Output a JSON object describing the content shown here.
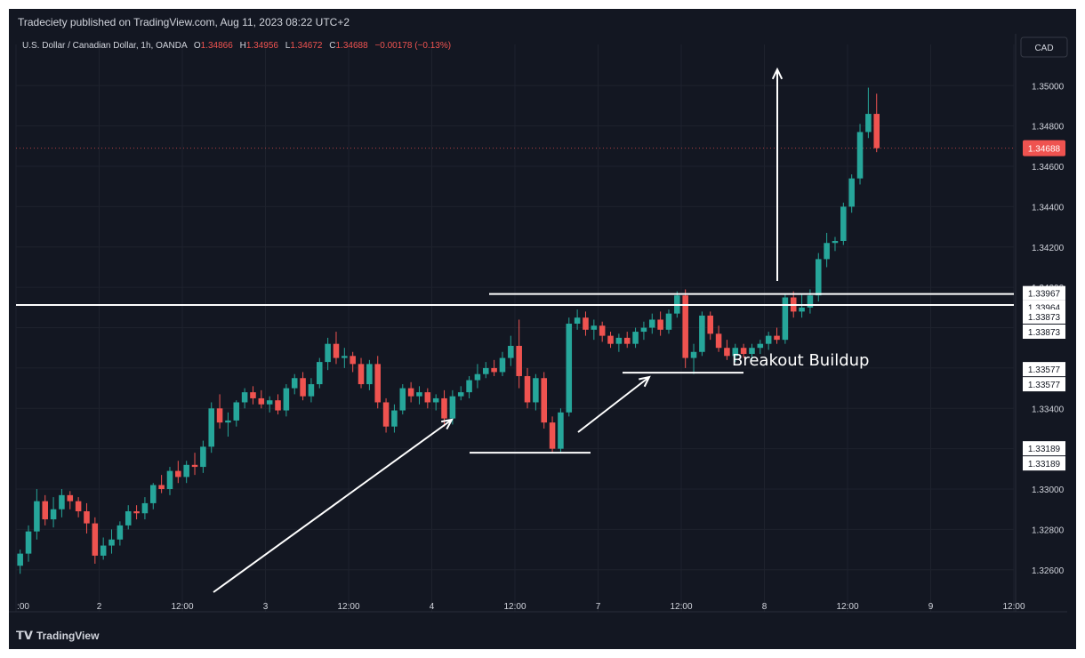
{
  "publisher_line": "Tradeciety published on TradingView.com, Aug 11, 2023 08:22 UTC+2",
  "footer_brand": "TradingView",
  "legend": {
    "symbol": "U.S. Dollar / Canadian Dollar, 1h, OANDA",
    "o_label": "O",
    "o_value": "1.34866",
    "h_label": "H",
    "h_value": "1.34956",
    "l_label": "L",
    "l_value": "1.34672",
    "c_label": "C",
    "c_value": "1.34688",
    "change": "−0.00178 (−0.13%)"
  },
  "currency_label": "CAD",
  "current_price_label": "1.34688",
  "level_labels": [
    "1.33967",
    "1.33964",
    "1.33873",
    "1.33873",
    "1.33577",
    "1.33577",
    "1.33189",
    "1.33189"
  ],
  "annotation_text": "Breakout Buildup",
  "colors": {
    "bg": "#131722",
    "up": "#26a69a",
    "down": "#ef5350",
    "text": "#d1d4dc",
    "grid": "#1e222d",
    "annotation": "#ffffff"
  },
  "chart_data": {
    "type": "candlestick",
    "y_ticks": [
      1.326,
      1.328,
      1.33,
      1.332,
      1.334,
      1.336,
      1.338,
      1.34,
      1.342,
      1.344,
      1.346,
      1.348,
      1.35
    ],
    "y_tick_labels": [
      "1.32600",
      "1.32800",
      "1.33000",
      "",
      "1.33400",
      "",
      "",
      "1.34000",
      "1.34200",
      "1.34400",
      "1.34600",
      "1.34800",
      "1.35000"
    ],
    "ylim": [
      1.3248,
      1.3516
    ],
    "x_labels": [
      ":00",
      "2",
      "12:00",
      "3",
      "12:00",
      "4",
      "12:00",
      "7",
      "12:00",
      "8",
      "12:00",
      "9",
      "12:00"
    ],
    "x_label_bars": [
      0,
      10,
      20,
      30,
      40,
      50,
      60,
      70,
      80,
      90,
      100,
      110,
      120
    ],
    "bars": [
      [
        1.3262,
        1.327,
        1.3258,
        1.3268
      ],
      [
        1.3268,
        1.3282,
        1.3264,
        1.3279
      ],
      [
        1.3279,
        1.33,
        1.3275,
        1.3294
      ],
      [
        1.3294,
        1.3297,
        1.3282,
        1.3285
      ],
      [
        1.3285,
        1.3296,
        1.3281,
        1.329
      ],
      [
        1.329,
        1.33,
        1.3286,
        1.3297
      ],
      [
        1.3297,
        1.3299,
        1.329,
        1.3294
      ],
      [
        1.3294,
        1.3296,
        1.3286,
        1.3289
      ],
      [
        1.3289,
        1.3293,
        1.3278,
        1.3283
      ],
      [
        1.3283,
        1.3286,
        1.3263,
        1.3267
      ],
      [
        1.3267,
        1.3276,
        1.3265,
        1.3272
      ],
      [
        1.3272,
        1.328,
        1.3268,
        1.3275
      ],
      [
        1.3275,
        1.3284,
        1.3272,
        1.3282
      ],
      [
        1.3282,
        1.3292,
        1.328,
        1.3289
      ],
      [
        1.3289,
        1.3292,
        1.3285,
        1.3288
      ],
      [
        1.3288,
        1.3296,
        1.3285,
        1.3293
      ],
      [
        1.3293,
        1.3303,
        1.329,
        1.3302
      ],
      [
        1.3302,
        1.3307,
        1.3298,
        1.33
      ],
      [
        1.33,
        1.3311,
        1.3297,
        1.3309
      ],
      [
        1.3309,
        1.3314,
        1.3303,
        1.3306
      ],
      [
        1.3306,
        1.3314,
        1.3303,
        1.3312
      ],
      [
        1.3312,
        1.3318,
        1.3307,
        1.3311
      ],
      [
        1.3311,
        1.3324,
        1.3308,
        1.3321
      ],
      [
        1.3321,
        1.3343,
        1.3318,
        1.334
      ],
      [
        1.334,
        1.3347,
        1.333,
        1.3333
      ],
      [
        1.3333,
        1.3338,
        1.3326,
        1.3334
      ],
      [
        1.3334,
        1.3344,
        1.3331,
        1.3343
      ],
      [
        1.3343,
        1.335,
        1.334,
        1.3348
      ],
      [
        1.3348,
        1.3351,
        1.3342,
        1.3345
      ],
      [
        1.3345,
        1.3349,
        1.334,
        1.3342
      ],
      [
        1.3342,
        1.3346,
        1.3338,
        1.3344
      ],
      [
        1.3344,
        1.3347,
        1.3337,
        1.3339
      ],
      [
        1.3339,
        1.3352,
        1.3336,
        1.335
      ],
      [
        1.335,
        1.3357,
        1.3347,
        1.3355
      ],
      [
        1.3355,
        1.3358,
        1.3344,
        1.3346
      ],
      [
        1.3346,
        1.3355,
        1.3343,
        1.3352
      ],
      [
        1.3352,
        1.3365,
        1.335,
        1.3363
      ],
      [
        1.3363,
        1.3375,
        1.3359,
        1.3372
      ],
      [
        1.3372,
        1.3378,
        1.3362,
        1.3365
      ],
      [
        1.3365,
        1.337,
        1.336,
        1.3366
      ],
      [
        1.3366,
        1.3368,
        1.3358,
        1.3362
      ],
      [
        1.3362,
        1.3365,
        1.335,
        1.3352
      ],
      [
        1.3352,
        1.3364,
        1.3349,
        1.3362
      ],
      [
        1.3362,
        1.3366,
        1.334,
        1.3343
      ],
      [
        1.3343,
        1.3345,
        1.3328,
        1.3331
      ],
      [
        1.3331,
        1.3342,
        1.3328,
        1.3339
      ],
      [
        1.3339,
        1.3352,
        1.3337,
        1.335
      ],
      [
        1.335,
        1.3353,
        1.3343,
        1.3346
      ],
      [
        1.3346,
        1.3351,
        1.3342,
        1.3348
      ],
      [
        1.3348,
        1.335,
        1.334,
        1.3343
      ],
      [
        1.3343,
        1.3347,
        1.3339,
        1.3345
      ],
      [
        1.3345,
        1.3349,
        1.3331,
        1.3335
      ],
      [
        1.3335,
        1.3349,
        1.3332,
        1.3346
      ],
      [
        1.3346,
        1.3351,
        1.3344,
        1.3348
      ],
      [
        1.3348,
        1.3356,
        1.3345,
        1.3354
      ],
      [
        1.3354,
        1.3362,
        1.335,
        1.3357
      ],
      [
        1.3357,
        1.3363,
        1.3355,
        1.336
      ],
      [
        1.336,
        1.3364,
        1.3356,
        1.3358
      ],
      [
        1.3358,
        1.3368,
        1.3356,
        1.3365
      ],
      [
        1.3365,
        1.3376,
        1.3361,
        1.3371
      ],
      [
        1.3371,
        1.3384,
        1.335,
        1.3356
      ],
      [
        1.3356,
        1.336,
        1.334,
        1.3343
      ],
      [
        1.3343,
        1.3357,
        1.3339,
        1.3355
      ],
      [
        1.3355,
        1.3358,
        1.333,
        1.3333
      ],
      [
        1.3333,
        1.3336,
        1.3318,
        1.332
      ],
      [
        1.332,
        1.334,
        1.3318,
        1.3338
      ],
      [
        1.3338,
        1.3385,
        1.3336,
        1.3382
      ],
      [
        1.3382,
        1.3389,
        1.3379,
        1.3385
      ],
      [
        1.3385,
        1.3388,
        1.3376,
        1.3379
      ],
      [
        1.3379,
        1.3384,
        1.3374,
        1.3381
      ],
      [
        1.3381,
        1.3383,
        1.3373,
        1.3376
      ],
      [
        1.3376,
        1.3378,
        1.337,
        1.3372
      ],
      [
        1.3372,
        1.3377,
        1.3368,
        1.3375
      ],
      [
        1.3375,
        1.3378,
        1.337,
        1.3372
      ],
      [
        1.3372,
        1.338,
        1.337,
        1.3378
      ],
      [
        1.3378,
        1.3383,
        1.3374,
        1.338
      ],
      [
        1.338,
        1.3387,
        1.3377,
        1.3384
      ],
      [
        1.3384,
        1.3388,
        1.3376,
        1.3379
      ],
      [
        1.3379,
        1.3389,
        1.3377,
        1.3387
      ],
      [
        1.3387,
        1.3398,
        1.3385,
        1.3396
      ],
      [
        1.3396,
        1.3399,
        1.336,
        1.3365
      ],
      [
        1.3365,
        1.3372,
        1.3357,
        1.3368
      ],
      [
        1.3368,
        1.3388,
        1.3366,
        1.3386
      ],
      [
        1.3386,
        1.3388,
        1.3374,
        1.3377
      ],
      [
        1.3377,
        1.3381,
        1.3368,
        1.337
      ],
      [
        1.337,
        1.3374,
        1.3364,
        1.3366
      ],
      [
        1.3366,
        1.3372,
        1.3363,
        1.337
      ],
      [
        1.337,
        1.3372,
        1.3365,
        1.3367
      ],
      [
        1.3367,
        1.3372,
        1.3364,
        1.337
      ],
      [
        1.337,
        1.3374,
        1.3367,
        1.3372
      ],
      [
        1.3372,
        1.3378,
        1.3369,
        1.3376
      ],
      [
        1.3376,
        1.338,
        1.3372,
        1.3374
      ],
      [
        1.3374,
        1.3397,
        1.3372,
        1.3395
      ],
      [
        1.3395,
        1.3398,
        1.3385,
        1.3388
      ],
      [
        1.3388,
        1.3397,
        1.3385,
        1.339
      ],
      [
        1.339,
        1.3399,
        1.3387,
        1.3396
      ],
      [
        1.3396,
        1.3417,
        1.3393,
        1.3414
      ],
      [
        1.3414,
        1.3427,
        1.341,
        1.3422
      ],
      [
        1.3422,
        1.3425,
        1.3418,
        1.3423
      ],
      [
        1.3423,
        1.3442,
        1.3421,
        1.344
      ],
      [
        1.344,
        1.3456,
        1.3437,
        1.3454
      ],
      [
        1.3454,
        1.3481,
        1.3451,
        1.3477
      ],
      [
        1.3477,
        1.3499,
        1.3474,
        1.3486
      ],
      [
        1.3486,
        1.3496,
        1.3467,
        1.3469
      ]
    ],
    "levels": [
      {
        "price": 1.33967,
        "label_index": 0
      },
      {
        "price": 1.33873,
        "label_index": 2
      },
      {
        "price": 1.33577,
        "label_index": 4
      },
      {
        "price": 1.33189,
        "label_index": 6
      }
    ]
  }
}
